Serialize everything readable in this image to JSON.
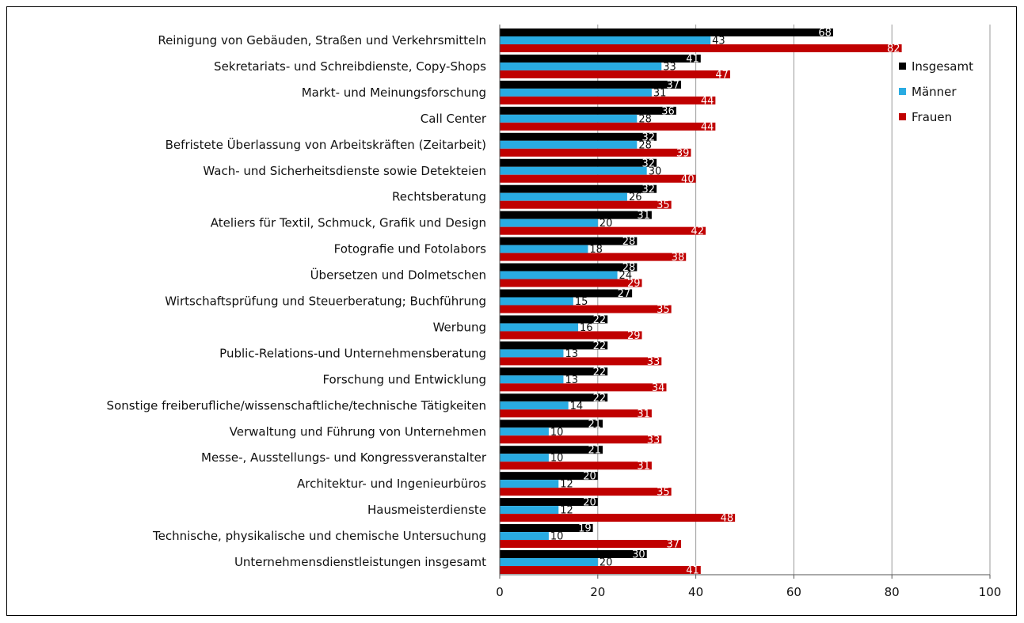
{
  "chart_data": {
    "type": "bar",
    "orientation": "horizontal",
    "categories": [
      "Reinigung von Gebäuden, Straßen und Verkehrsmitteln",
      "Sekretariats- und Schreibdienste, Copy-Shops",
      "Markt- und Meinungsforschung",
      "Call Center",
      "Befristete Überlassung von Arbeitskräften (Zeitarbeit)",
      "Wach- und Sicherheitsdienste sowie Detekteien",
      "Rechtsberatung",
      "Ateliers für Textil, Schmuck, Grafik und Design",
      "Fotografie und Fotolabors",
      "Übersetzen und Dolmetschen",
      "Wirtschaftsprüfung und Steuerberatung; Buchführung",
      "Werbung",
      "Public-Relations-und Unternehmensberatung",
      "Forschung und Entwicklung",
      "Sonstige freiberufliche/wissenschaftliche/technische Tätigkeiten",
      "Verwaltung und Führung von Unternehmen",
      "Messe-, Ausstellungs- und Kongressveranstalter",
      "Architektur- und Ingenieurbüros",
      "Hausmeisterdienste",
      "Technische, physikalische und chemische Untersuchung",
      "Unternehmensdienstleistungen insgesamt"
    ],
    "series": [
      {
        "name": "Insgesamt",
        "color": "#000000",
        "values": [
          68,
          41,
          37,
          36,
          32,
          32,
          32,
          31,
          28,
          28,
          27,
          22,
          22,
          22,
          22,
          21,
          21,
          20,
          20,
          19,
          30
        ],
        "labels": [
          "68",
          "41",
          "37",
          "36",
          "32",
          "32",
          "32",
          "31",
          "28",
          "28",
          "27",
          "22",
          "22",
          "22",
          "22",
          "21",
          "21",
          "20",
          "20",
          "19",
          "30"
        ]
      },
      {
        "name": "Männer",
        "color": "#29abe2",
        "values": [
          43,
          33,
          31,
          28,
          28,
          30,
          26,
          20,
          18,
          24,
          15,
          16,
          13,
          13,
          14,
          10,
          10,
          12,
          12,
          10,
          20
        ],
        "labels": [
          "43",
          "33",
          "31",
          "28",
          "28",
          "30",
          "26",
          "20",
          "18",
          "24",
          "15",
          "16",
          "13",
          "13",
          "14",
          "10",
          "10",
          "12",
          "12",
          "10",
          "20"
        ]
      },
      {
        "name": "Frauen",
        "color": "#c00000",
        "values": [
          82,
          47,
          44,
          44,
          39,
          40,
          35,
          42,
          38,
          29,
          35,
          29,
          33,
          34,
          31,
          33,
          31,
          35,
          48,
          37,
          41
        ],
        "labels": [
          "82",
          "47",
          "44",
          "44",
          "39",
          "40",
          "35",
          "42",
          "38",
          "29",
          "35",
          "29",
          "33",
          "34",
          "31",
          "33",
          "31",
          "35",
          "48",
          "37",
          "41"
        ]
      }
    ],
    "xlim": [
      0,
      100
    ],
    "xticks": [
      "0",
      "20",
      "40",
      "60",
      "80",
      "100"
    ],
    "grid": "vertical",
    "legend_position": "top-right",
    "title": "",
    "xlabel": "",
    "ylabel": ""
  }
}
